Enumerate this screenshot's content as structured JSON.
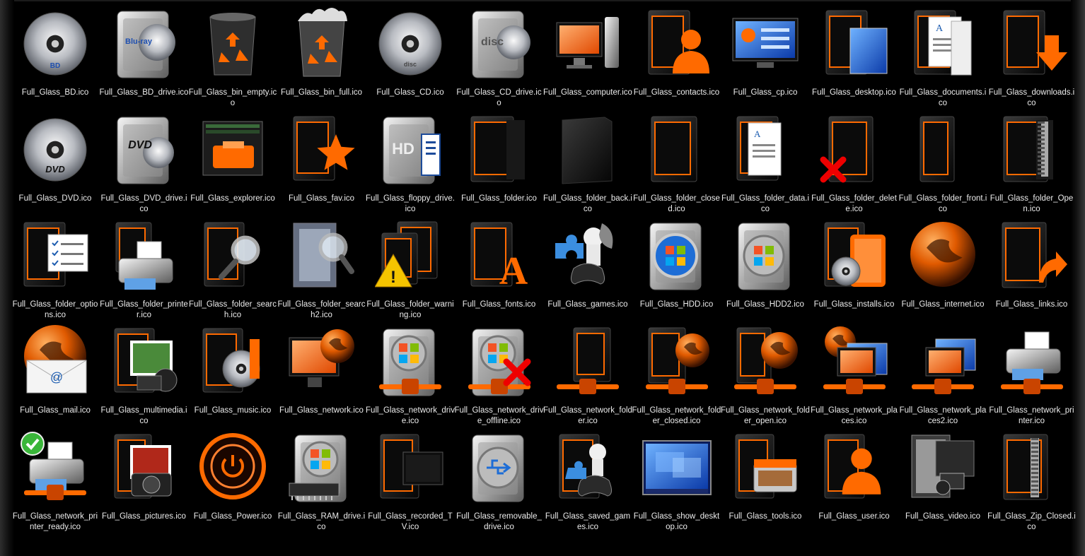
{
  "window": {
    "background": "#000000",
    "label_color": "#ececec",
    "accent": "#ff6a00"
  },
  "icons": [
    {
      "label": "Full_Glass_BD.ico",
      "icon": "disc-bd-icon"
    },
    {
      "label": "Full_Glass_BD_drive.ico",
      "icon": "drive-bd-icon"
    },
    {
      "label": "Full_Glass_bin_empty.ico",
      "icon": "bin-empty-icon"
    },
    {
      "label": "Full_Glass_bin_full.ico",
      "icon": "bin-full-icon"
    },
    {
      "label": "Full_Glass_CD.ico",
      "icon": "disc-cd-icon"
    },
    {
      "label": "Full_Glass_CD_drive.ico",
      "icon": "drive-cd-icon"
    },
    {
      "label": "Full_Glass_computer.ico",
      "icon": "computer-icon"
    },
    {
      "label": "Full_Glass_contacts.ico",
      "icon": "contacts-icon"
    },
    {
      "label": "Full_Glass_cp.ico",
      "icon": "control-panel-icon"
    },
    {
      "label": "Full_Glass_desktop.ico",
      "icon": "desktop-folder-icon"
    },
    {
      "label": "Full_Glass_documents.ico",
      "icon": "documents-icon"
    },
    {
      "label": "Full_Glass_downloads.ico",
      "icon": "downloads-icon"
    },
    {
      "label": "Full_Glass_DVD.ico",
      "icon": "disc-dvd-icon"
    },
    {
      "label": "Full_Glass_DVD_drive.ico",
      "icon": "drive-dvd-icon"
    },
    {
      "label": "Full_Glass_explorer.ico",
      "icon": "explorer-icon"
    },
    {
      "label": "Full_Glass_fav.ico",
      "icon": "favorites-icon"
    },
    {
      "label": "Full_Glass_floppy_drive.ico",
      "icon": "floppy-drive-icon"
    },
    {
      "label": "Full_Glass_folder.ico",
      "icon": "folder-icon"
    },
    {
      "label": "Full_Glass_folder_back.ico",
      "icon": "folder-back-icon"
    },
    {
      "label": "Full_Glass_folder_closed.ico",
      "icon": "folder-closed-icon"
    },
    {
      "label": "Full_Glass_folder_data.ico",
      "icon": "folder-data-icon"
    },
    {
      "label": "Full_Glass_folder_delete.ico",
      "icon": "folder-delete-icon"
    },
    {
      "label": "Full_Glass_folder_front.ico",
      "icon": "folder-front-icon"
    },
    {
      "label": "Full_Glass_folder_Open.ico",
      "icon": "folder-zip-open-icon"
    },
    {
      "label": "Full_Glass_folder_options.ico",
      "icon": "folder-options-icon"
    },
    {
      "label": "Full_Glass_folder_printer.ico",
      "icon": "folder-printer-icon"
    },
    {
      "label": "Full_Glass_folder_search.ico",
      "icon": "folder-search-icon"
    },
    {
      "label": "Full_Glass_folder_search2.ico",
      "icon": "folder-search2-icon"
    },
    {
      "label": "Full_Glass_folder_warning.ico",
      "icon": "folder-warning-icon"
    },
    {
      "label": "Full_Glass_fonts.ico",
      "icon": "fonts-icon"
    },
    {
      "label": "Full_Glass_games.ico",
      "icon": "games-icon"
    },
    {
      "label": "Full_Glass_HDD.ico",
      "icon": "hdd-windows-icon"
    },
    {
      "label": "Full_Glass_HDD2.ico",
      "icon": "hdd-icon"
    },
    {
      "label": "Full_Glass_installs.ico",
      "icon": "installs-icon"
    },
    {
      "label": "Full_Glass_internet.ico",
      "icon": "globe-icon"
    },
    {
      "label": "Full_Glass_links.ico",
      "icon": "links-icon"
    },
    {
      "label": "Full_Glass_mail.ico",
      "icon": "mail-icon"
    },
    {
      "label": "Full_Glass_multimedia.ico",
      "icon": "multimedia-icon"
    },
    {
      "label": "Full_Glass_music.ico",
      "icon": "music-icon"
    },
    {
      "label": "Full_Glass_network.ico",
      "icon": "network-icon"
    },
    {
      "label": "Full_Glass_network_drive.ico",
      "icon": "network-drive-icon"
    },
    {
      "label": "Full_Glass_network_drive_offline.ico",
      "icon": "network-drive-offline-icon"
    },
    {
      "label": "Full_Glass_network_folder.ico",
      "icon": "network-folder-icon"
    },
    {
      "label": "Full_Glass_network_folder_closed.ico",
      "icon": "network-folder-closed-icon"
    },
    {
      "label": "Full_Glass_network_folder_open.ico",
      "icon": "network-folder-open-icon"
    },
    {
      "label": "Full_Glass_network_places.ico",
      "icon": "network-places-icon"
    },
    {
      "label": "Full_Glass_network_places2.ico",
      "icon": "network-places2-icon"
    },
    {
      "label": "Full_Glass_network_printer.ico",
      "icon": "network-printer-icon"
    },
    {
      "label": "Full_Glass_network_printer_ready.ico",
      "icon": "printer-ready-icon"
    },
    {
      "label": "Full_Glass_pictures.ico",
      "icon": "pictures-icon"
    },
    {
      "label": "Full_Glass_Power.ico",
      "icon": "power-icon"
    },
    {
      "label": "Full_Glass_RAM_drive.ico",
      "icon": "ram-drive-icon"
    },
    {
      "label": "Full_Glass_recorded_TV.ico",
      "icon": "recorded-tv-icon"
    },
    {
      "label": "Full_Glass_removable_drive.ico",
      "icon": "removable-drive-icon"
    },
    {
      "label": "Full_Glass_saved_games.ico",
      "icon": "saved-games-icon"
    },
    {
      "label": "Full_Glass_show_desktop.ico",
      "icon": "show-desktop-icon"
    },
    {
      "label": "Full_Glass_tools.ico",
      "icon": "tools-icon"
    },
    {
      "label": "Full_Glass_user.ico",
      "icon": "user-icon"
    },
    {
      "label": "Full_Glass_video.ico",
      "icon": "video-icon"
    },
    {
      "label": "Full_Glass_Zip_Closed.ico",
      "icon": "zip-closed-icon"
    }
  ]
}
